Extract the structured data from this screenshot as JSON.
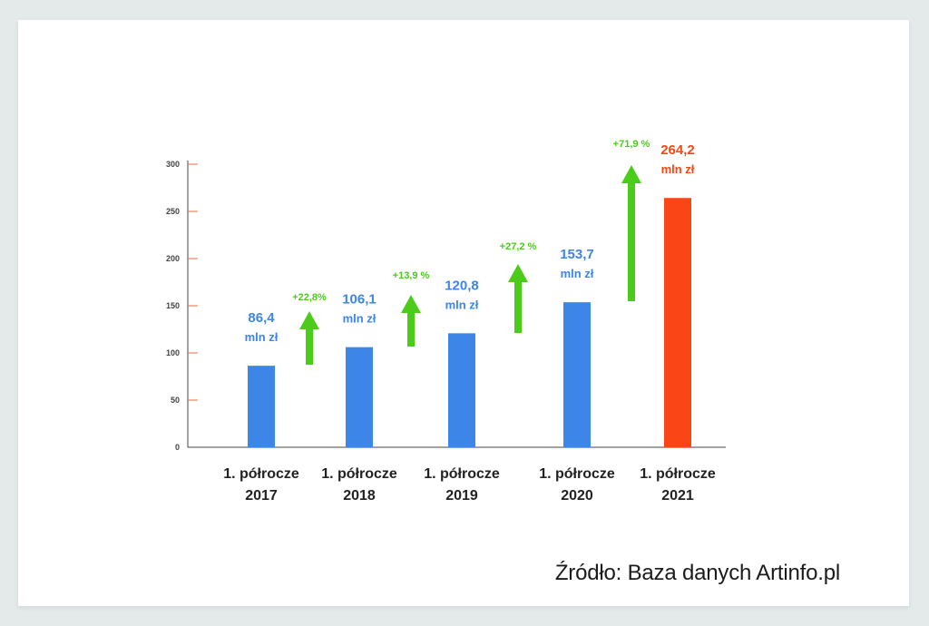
{
  "chart_data": {
    "type": "bar",
    "categories": [
      [
        "1. półrocze",
        "2017"
      ],
      [
        "1. półrocze",
        "2018"
      ],
      [
        "1. półrocze",
        "2019"
      ],
      [
        "1. półrocze",
        "2020"
      ],
      [
        "1. półrocze",
        "2021"
      ]
    ],
    "values": [
      86.4,
      106.1,
      120.8,
      153.7,
      264.2
    ],
    "value_labels": [
      [
        "86,4",
        "mln zł"
      ],
      [
        "106,1",
        "mln zł"
      ],
      [
        "120,8",
        "mln zł"
      ],
      [
        "153,7",
        "mln zł"
      ],
      [
        "264,2",
        "mln zł"
      ]
    ],
    "growth_labels": [
      "+22,8%",
      "+13,9 %",
      "+27,2 %",
      "+71,9 %"
    ],
    "y_ticks": [
      0,
      50,
      100,
      150,
      200,
      250,
      300
    ],
    "ylim": [
      0,
      300
    ],
    "grid": false,
    "colors": {
      "bar": "#3d85e6",
      "highlight_bar": "#fa4614",
      "growth": "#4ccc1a",
      "axis": "#444444",
      "tick": "#f0683a",
      "text": "#222222"
    }
  },
  "source": "Źródło: Baza danych Artinfo.pl"
}
